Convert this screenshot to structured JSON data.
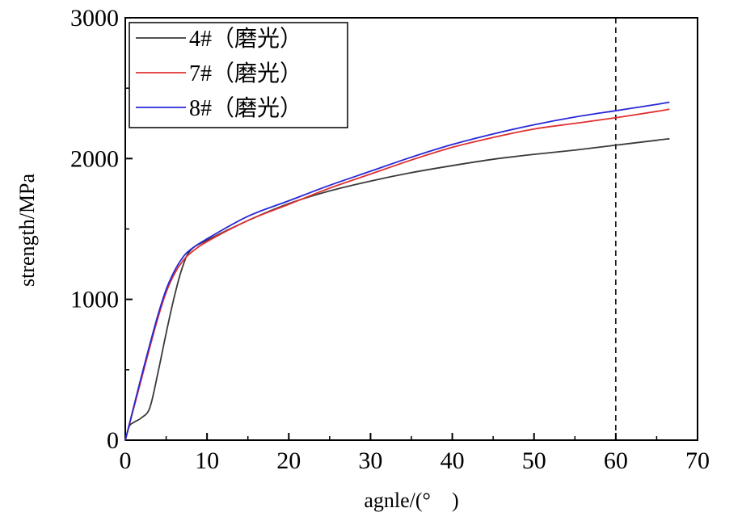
{
  "chart_data": {
    "type": "line",
    "xlabel": "agnle/(°　)",
    "ylabel": "strength/MPa",
    "xlim": [
      0,
      70
    ],
    "ylim": [
      0,
      3000
    ],
    "x_ticks": [
      0,
      10,
      20,
      30,
      40,
      50,
      60,
      70
    ],
    "y_ticks": [
      0,
      1000,
      2000,
      3000
    ],
    "x_tick_labels": [
      "0",
      "10",
      "20",
      "30",
      "40",
      "50",
      "60",
      "70"
    ],
    "y_tick_labels": [
      "0",
      "1000",
      "2000",
      "3000"
    ],
    "grid": false,
    "legend_position": "top-left",
    "reference_line": {
      "x": 60,
      "style": "dashed"
    },
    "series": [
      {
        "name": "4#（磨光）",
        "color": "#3a3a3a",
        "points": [
          [
            0,
            0
          ],
          [
            0.5,
            100
          ],
          [
            1,
            125
          ],
          [
            2,
            160
          ],
          [
            3,
            230
          ],
          [
            4,
            480
          ],
          [
            5,
            760
          ],
          [
            6,
            1020
          ],
          [
            7,
            1230
          ],
          [
            8,
            1350
          ],
          [
            10,
            1420
          ],
          [
            15,
            1560
          ],
          [
            20,
            1680
          ],
          [
            25,
            1770
          ],
          [
            30,
            1840
          ],
          [
            35,
            1900
          ],
          [
            40,
            1950
          ],
          [
            45,
            1995
          ],
          [
            50,
            2030
          ],
          [
            55,
            2060
          ],
          [
            60,
            2095
          ],
          [
            65,
            2130
          ],
          [
            66.5,
            2140
          ]
        ]
      },
      {
        "name": "7#（磨光）",
        "color": "#e03030",
        "points": [
          [
            0,
            0
          ],
          [
            1,
            220
          ],
          [
            2,
            440
          ],
          [
            3,
            660
          ],
          [
            4,
            870
          ],
          [
            5,
            1050
          ],
          [
            6,
            1180
          ],
          [
            7,
            1270
          ],
          [
            8,
            1330
          ],
          [
            10,
            1410
          ],
          [
            15,
            1560
          ],
          [
            20,
            1675
          ],
          [
            25,
            1790
          ],
          [
            30,
            1890
          ],
          [
            35,
            1990
          ],
          [
            40,
            2080
          ],
          [
            45,
            2150
          ],
          [
            50,
            2210
          ],
          [
            55,
            2250
          ],
          [
            60,
            2290
          ],
          [
            65,
            2335
          ],
          [
            66.5,
            2350
          ]
        ]
      },
      {
        "name": "8#（磨光）",
        "color": "#2828d8",
        "points": [
          [
            0,
            0
          ],
          [
            1,
            230
          ],
          [
            2,
            460
          ],
          [
            3,
            680
          ],
          [
            4,
            890
          ],
          [
            5,
            1070
          ],
          [
            6,
            1200
          ],
          [
            7,
            1295
          ],
          [
            8,
            1355
          ],
          [
            10,
            1430
          ],
          [
            15,
            1590
          ],
          [
            20,
            1700
          ],
          [
            25,
            1810
          ],
          [
            30,
            1910
          ],
          [
            35,
            2010
          ],
          [
            40,
            2100
          ],
          [
            45,
            2175
          ],
          [
            50,
            2240
          ],
          [
            55,
            2295
          ],
          [
            60,
            2340
          ],
          [
            65,
            2385
          ],
          [
            66.5,
            2400
          ]
        ]
      }
    ]
  }
}
